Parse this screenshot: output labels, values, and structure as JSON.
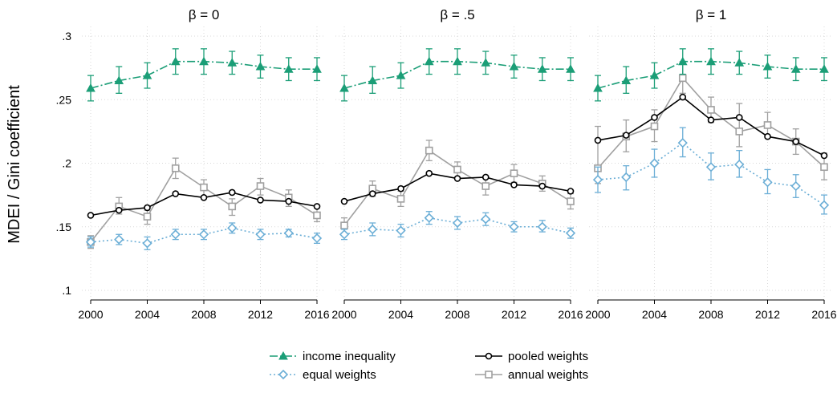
{
  "chart_data": {
    "type": "line",
    "ylabel": "MDEI / Gini coefficient",
    "ylim": [
      0.1,
      0.3
    ],
    "yticks": [
      0.1,
      0.15,
      0.2,
      0.25,
      0.3
    ],
    "ytick_labels": [
      ".1",
      ".15",
      ".2",
      ".25",
      ".3"
    ],
    "x": [
      2000,
      2002,
      2004,
      2006,
      2008,
      2010,
      2012,
      2014,
      2016
    ],
    "xticks": [
      2000,
      2004,
      2008,
      2012,
      2016
    ],
    "xtick_labels": [
      "2000",
      "2004",
      "2008",
      "2012",
      "2016"
    ],
    "grid": true,
    "legend_position": "bottom",
    "legend": [
      {
        "key": "income",
        "label": "income inequality"
      },
      {
        "key": "pooled",
        "label": "pooled weights"
      },
      {
        "key": "equal",
        "label": "equal weights"
      },
      {
        "key": "annual",
        "label": "annual weights"
      }
    ],
    "series_styles": {
      "income": {
        "color": "#1b9e77",
        "marker": "triangle",
        "dash": "dash-dot"
      },
      "pooled": {
        "color": "#000000",
        "marker": "circle",
        "dash": "solid"
      },
      "equal": {
        "color": "#6baed6",
        "marker": "diamond",
        "dash": "dotted"
      },
      "annual": {
        "color": "#a0a0a0",
        "marker": "square",
        "dash": "solid"
      }
    },
    "panels": [
      {
        "title": "β = 0",
        "series": {
          "income": {
            "values": [
              0.259,
              0.265,
              0.269,
              0.28,
              0.28,
              0.279,
              0.276,
              0.274,
              0.274
            ],
            "lower": [
              0.249,
              0.255,
              0.259,
              0.27,
              0.27,
              0.27,
              0.267,
              0.265,
              0.265
            ],
            "upper": [
              0.269,
              0.276,
              0.279,
              0.29,
              0.29,
              0.288,
              0.285,
              0.283,
              0.283
            ]
          },
          "pooled": {
            "values": [
              0.159,
              0.163,
              0.165,
              0.176,
              0.173,
              0.177,
              0.171,
              0.17,
              0.166
            ],
            "lower": null,
            "upper": null
          },
          "equal": {
            "values": [
              0.138,
              0.14,
              0.137,
              0.144,
              0.144,
              0.149,
              0.144,
              0.145,
              0.141
            ],
            "lower": [
              0.134,
              0.136,
              0.132,
              0.14,
              0.14,
              0.145,
              0.14,
              0.142,
              0.137
            ],
            "upper": [
              0.142,
              0.144,
              0.142,
              0.148,
              0.148,
              0.153,
              0.148,
              0.148,
              0.145
            ]
          },
          "annual": {
            "values": [
              0.138,
              0.166,
              0.158,
              0.196,
              0.181,
              0.166,
              0.182,
              0.173,
              0.159
            ],
            "lower": [
              0.133,
              0.16,
              0.152,
              0.188,
              0.174,
              0.159,
              0.175,
              0.166,
              0.154
            ],
            "upper": [
              0.143,
              0.173,
              0.163,
              0.204,
              0.187,
              0.172,
              0.188,
              0.179,
              0.165
            ]
          }
        }
      },
      {
        "title": "β = .5",
        "series": {
          "income": {
            "values": [
              0.259,
              0.265,
              0.269,
              0.28,
              0.28,
              0.279,
              0.276,
              0.274,
              0.274
            ],
            "lower": [
              0.249,
              0.255,
              0.259,
              0.27,
              0.27,
              0.27,
              0.267,
              0.265,
              0.265
            ],
            "upper": [
              0.269,
              0.276,
              0.279,
              0.29,
              0.29,
              0.288,
              0.285,
              0.283,
              0.283
            ]
          },
          "pooled": {
            "values": [
              0.17,
              0.176,
              0.18,
              0.192,
              0.188,
              0.189,
              0.183,
              0.182,
              0.178
            ],
            "lower": null,
            "upper": null
          },
          "equal": {
            "values": [
              0.144,
              0.148,
              0.147,
              0.157,
              0.153,
              0.156,
              0.15,
              0.15,
              0.145
            ],
            "lower": [
              0.14,
              0.143,
              0.142,
              0.152,
              0.148,
              0.151,
              0.146,
              0.146,
              0.141
            ],
            "upper": [
              0.148,
              0.153,
              0.152,
              0.162,
              0.158,
              0.161,
              0.154,
              0.155,
              0.149
            ]
          },
          "annual": {
            "values": [
              0.151,
              0.18,
              0.172,
              0.21,
              0.195,
              0.182,
              0.192,
              0.184,
              0.17
            ],
            "lower": [
              0.145,
              0.174,
              0.166,
              0.202,
              0.188,
              0.175,
              0.185,
              0.178,
              0.164
            ],
            "upper": [
              0.157,
              0.186,
              0.178,
              0.218,
              0.201,
              0.188,
              0.199,
              0.19,
              0.176
            ]
          }
        }
      },
      {
        "title": "β = 1",
        "series": {
          "income": {
            "values": [
              0.259,
              0.265,
              0.269,
              0.28,
              0.28,
              0.279,
              0.276,
              0.274,
              0.274
            ],
            "lower": [
              0.249,
              0.255,
              0.259,
              0.27,
              0.27,
              0.27,
              0.267,
              0.265,
              0.265
            ],
            "upper": [
              0.269,
              0.276,
              0.279,
              0.29,
              0.29,
              0.288,
              0.285,
              0.283,
              0.283
            ]
          },
          "pooled": {
            "values": [
              0.218,
              0.222,
              0.236,
              0.252,
              0.234,
              0.236,
              0.221,
              0.217,
              0.206
            ],
            "lower": null,
            "upper": null
          },
          "equal": {
            "values": [
              0.187,
              0.189,
              0.2,
              0.216,
              0.197,
              0.199,
              0.185,
              0.182,
              0.167
            ],
            "lower": [
              0.177,
              0.179,
              0.189,
              0.205,
              0.187,
              0.189,
              0.176,
              0.173,
              0.16
            ],
            "upper": [
              0.197,
              0.198,
              0.211,
              0.228,
              0.208,
              0.21,
              0.195,
              0.191,
              0.175
            ]
          },
          "annual": {
            "values": [
              0.196,
              0.221,
              0.229,
              0.267,
              0.242,
              0.225,
              0.23,
              0.217,
              0.197
            ],
            "lower": [
              0.184,
              0.209,
              0.217,
              0.255,
              0.232,
              0.213,
              0.22,
              0.207,
              0.187
            ],
            "upper": [
              0.229,
              0.234,
              0.242,
              0.28,
              0.252,
              0.247,
              0.24,
              0.227,
              0.208
            ]
          }
        }
      }
    ]
  }
}
